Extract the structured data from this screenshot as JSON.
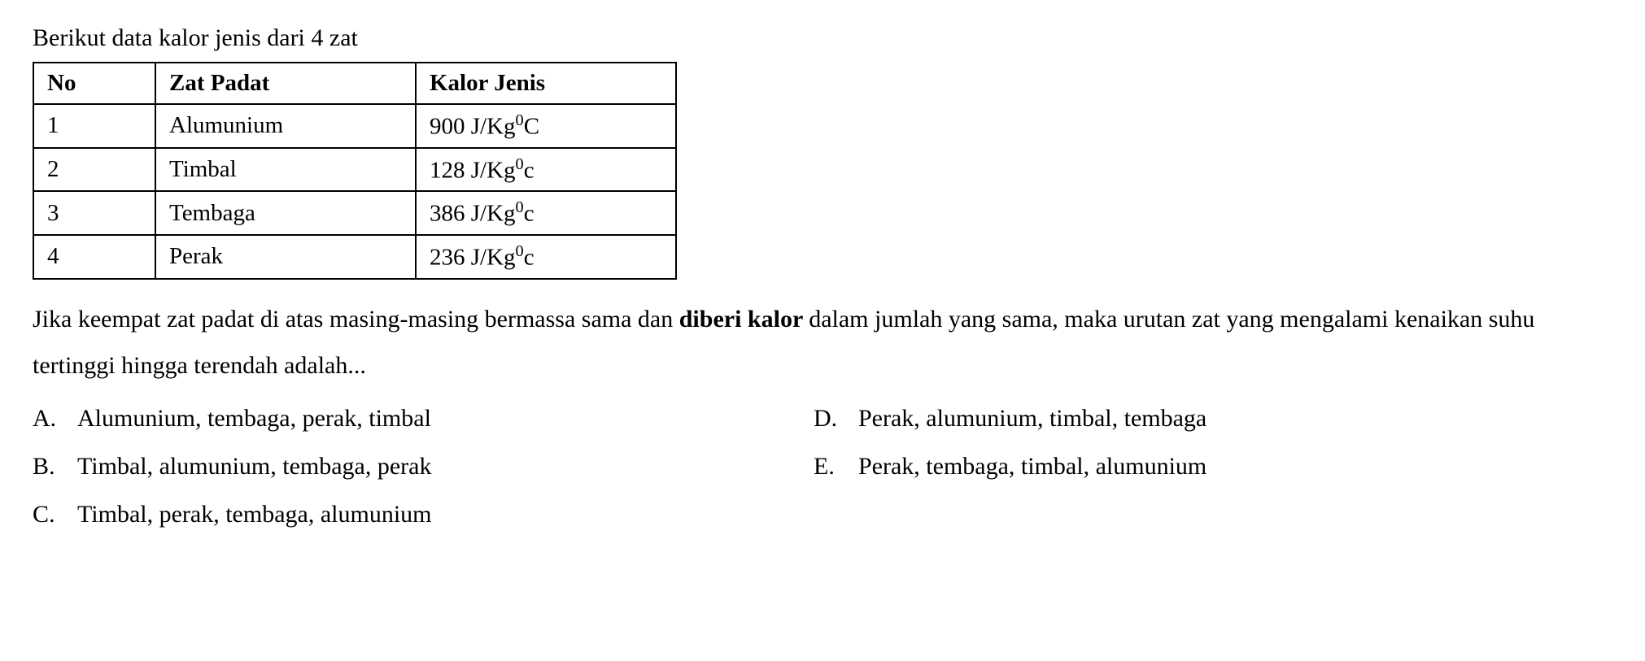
{
  "intro": "Berikut data kalor jenis dari 4 zat",
  "table": {
    "headers": {
      "no": "No",
      "zat": "Zat Padat",
      "kalor": "Kalor Jenis"
    },
    "rows": [
      {
        "no": "1",
        "zat": "Alumunium",
        "kalor_value": "900",
        "kalor_unit_prefix": "J/Kg",
        "kalor_unit_sup": "0",
        "kalor_unit_suffix": "C"
      },
      {
        "no": "2",
        "zat": "Timbal",
        "kalor_value": "128",
        "kalor_unit_prefix": "J/Kg",
        "kalor_unit_sup": "0",
        "kalor_unit_suffix": "c"
      },
      {
        "no": "3",
        "zat": "Tembaga",
        "kalor_value": "386",
        "kalor_unit_prefix": "J/Kg",
        "kalor_unit_sup": "0",
        "kalor_unit_suffix": "c"
      },
      {
        "no": "4",
        "zat": "Perak",
        "kalor_value": "236",
        "kalor_unit_prefix": "J/Kg",
        "kalor_unit_sup": "0",
        "kalor_unit_suffix": "c"
      }
    ],
    "col_widths": {
      "no": 150,
      "zat": 320,
      "kalor": 320
    },
    "border_color": "#000000",
    "border_width": 2
  },
  "question": {
    "part1": "Jika keempat zat padat di atas masing-masing bermassa sama dan",
    "bold": " diberi kalor ",
    "part2": "dalam jumlah yang sama, maka urutan zat yang mengalami kenaikan suhu tertinggi hingga terendah adalah..."
  },
  "options": {
    "A": {
      "letter": "A.",
      "text": "Alumunium, tembaga, perak, timbal"
    },
    "B": {
      "letter": "B.",
      "text": "Timbal, alumunium, tembaga, perak"
    },
    "C": {
      "letter": "C.",
      "text": "Timbal, perak, tembaga, alumunium"
    },
    "D": {
      "letter": "D.",
      "text": "Perak, alumunium, timbal, tembaga"
    },
    "E": {
      "letter": "E.",
      "text": "Perak, tembaga, timbal, alumunium"
    }
  },
  "styling": {
    "background_color": "#ffffff",
    "text_color": "#000000",
    "font_family": "Georgia, Times New Roman, serif",
    "base_fontsize": 30,
    "table_fontsize": 29,
    "line_height": 1.9
  }
}
